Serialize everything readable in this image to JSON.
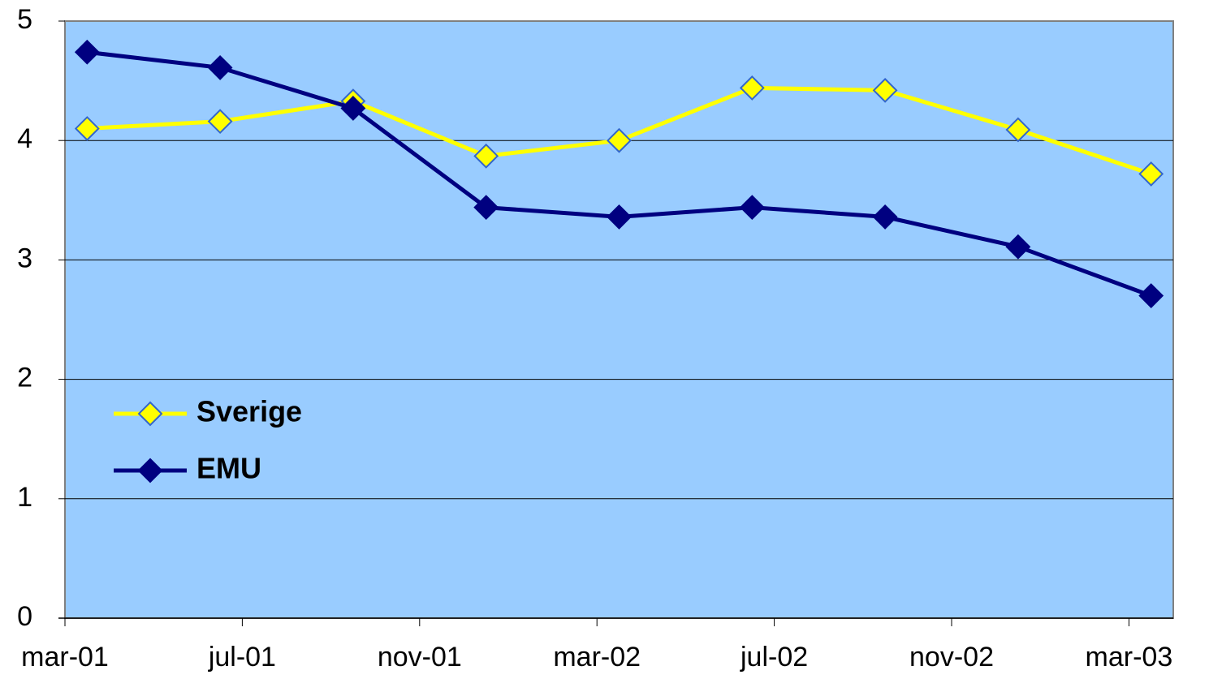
{
  "chart_data": {
    "type": "line",
    "x": [
      0.5,
      3.5,
      6.5,
      9.5,
      12.5,
      15.5,
      18.5,
      21.5,
      24.5
    ],
    "xlim": [
      0,
      25
    ],
    "xticks": [
      {
        "value": 0,
        "label": "mar-01"
      },
      {
        "value": 4,
        "label": "jul-01"
      },
      {
        "value": 8,
        "label": "nov-01"
      },
      {
        "value": 12,
        "label": "mar-02"
      },
      {
        "value": 16,
        "label": "jul-02"
      },
      {
        "value": 20,
        "label": "nov-02"
      },
      {
        "value": 24,
        "label": "mar-03"
      }
    ],
    "ylim": [
      0,
      5
    ],
    "yticks": [
      0,
      1,
      2,
      3,
      4,
      5
    ],
    "grid": true,
    "legend": "left",
    "series": [
      {
        "name": "Sverige",
        "color": "#ffff00",
        "marker_edge": "#3366cc",
        "values": [
          4.1,
          4.16,
          4.33,
          3.87,
          4.0,
          4.44,
          4.42,
          4.09,
          3.72
        ]
      },
      {
        "name": "EMU",
        "color": "#000080",
        "marker_edge": "#000080",
        "values": [
          4.74,
          4.61,
          4.27,
          3.44,
          3.36,
          3.44,
          3.36,
          3.11,
          2.7
        ]
      }
    ]
  }
}
